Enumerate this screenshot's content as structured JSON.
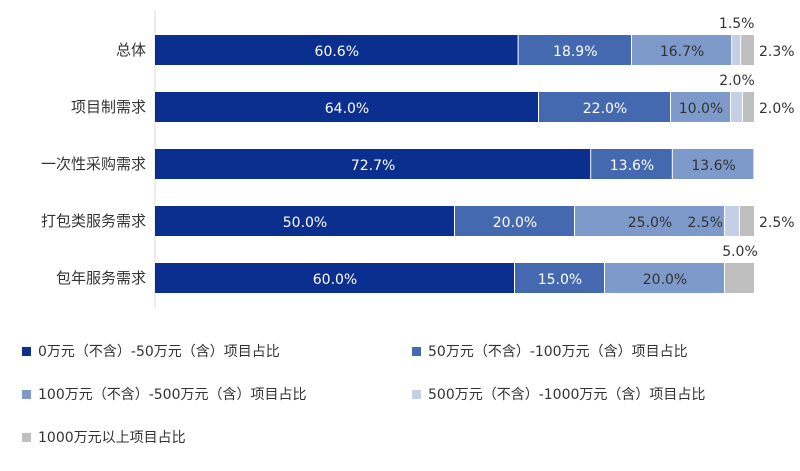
{
  "chart_data": {
    "type": "bar",
    "orientation": "horizontal",
    "stacked": true,
    "percent_total": true,
    "categories": [
      "总体",
      "项目制需求",
      "一次性采购需求",
      "打包类服务需求",
      "包年服务需求"
    ],
    "series": [
      {
        "name": "0万元（不含）-50万元（含）项目占比",
        "color": "#0A2F8F",
        "values": [
          60.6,
          64.0,
          72.7,
          50.0,
          60.0
        ],
        "labels": [
          "60.6%",
          "64.0%",
          "72.7%",
          "50.0%",
          "60.0%"
        ]
      },
      {
        "name": "50万元（不含）-100万元（含）项目占比",
        "color": "#4569B0",
        "values": [
          18.9,
          22.0,
          13.6,
          20.0,
          15.0
        ],
        "labels": [
          "18.9%",
          "22.0%",
          "13.6%",
          "20.0%",
          "15.0%"
        ]
      },
      {
        "name": "100万元（不含）-500万元（含）项目占比",
        "color": "#7D9ACA",
        "values": [
          16.7,
          10.0,
          13.6,
          25.0,
          20.0
        ],
        "labels": [
          "16.7%",
          "10.0%",
          "13.6%",
          "25.0%",
          "20.0%"
        ]
      },
      {
        "name": "500万元（不含）-1000万元（含）项目占比",
        "color": "#C3CFE4",
        "values": [
          1.5,
          2.0,
          0,
          2.5,
          0
        ],
        "labels": [
          "1.5%",
          "2.0%",
          "",
          "2.5%",
          ""
        ]
      },
      {
        "name": "1000万元以上项目占比",
        "color": "#BFBFBF",
        "values": [
          2.3,
          2.0,
          0,
          2.5,
          5.0
        ],
        "labels": [
          "2.3%",
          "2.0%",
          "",
          "2.5%",
          "5.0%"
        ]
      }
    ],
    "legend_position": "bottom",
    "grid": false
  }
}
